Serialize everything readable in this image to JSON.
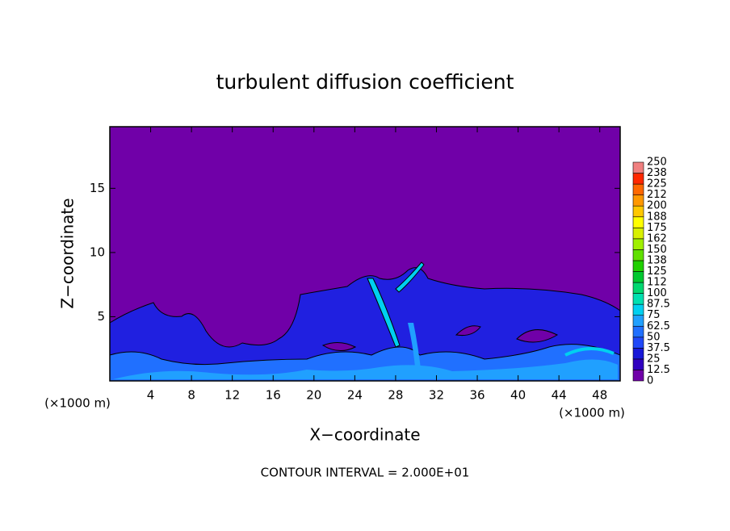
{
  "chart_data": {
    "type": "contour",
    "title": "turbulent diffusion coefficient",
    "xlabel": "X−coordinate",
    "ylabel": "Z−coordinate",
    "xunit": "(×1000 m)",
    "yunit": "(×1000 m)",
    "note": "CONTOUR INTERVAL = 2.000E+01",
    "xlim": [
      0,
      50
    ],
    "xticks": [
      4,
      8,
      12,
      16,
      20,
      24,
      28,
      32,
      36,
      40,
      44,
      48
    ],
    "ylim": [
      0,
      19.8
    ],
    "yticks": [
      5,
      10,
      15
    ],
    "colorbar": {
      "levels": [
        0,
        12.5,
        25,
        37.5,
        50,
        62.5,
        75,
        87.5,
        100,
        112,
        125,
        138,
        150,
        162,
        175,
        188,
        200,
        212,
        225,
        238,
        250
      ],
      "colors": [
        "#7000a8",
        "#3000c0",
        "#1818d8",
        "#2048f8",
        "#2070ff",
        "#20a0ff",
        "#00d0f0",
        "#00e0b0",
        "#00d870",
        "#00c830",
        "#20d000",
        "#60e000",
        "#a0f000",
        "#d8f000",
        "#ffff00",
        "#ffc800",
        "#ff9800",
        "#ff6800",
        "#ff2800",
        "#f08080"
      ]
    }
  }
}
